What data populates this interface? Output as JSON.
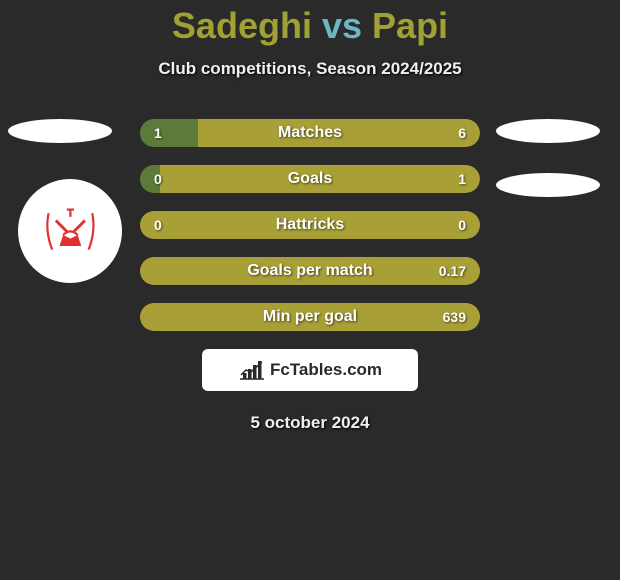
{
  "background_color": "#2a2a2a",
  "title": {
    "player1": "Sadeghi",
    "vs": "vs",
    "player2": "Papi",
    "player1_color": "#a0a034",
    "vs_color": "#6bb8c4",
    "player2_color": "#a0a034",
    "fontsize": 36
  },
  "subtitle": "Club competitions, Season 2024/2025",
  "avatars": {
    "left_club_color": "#e03030",
    "placeholder_bg": "#ffffff"
  },
  "bars": [
    {
      "label": "Matches",
      "left_value": "1",
      "right_value": "6",
      "left_fill_pct": 17,
      "left_color": "#5c7a3a",
      "right_color": "#a8a036"
    },
    {
      "label": "Goals",
      "left_value": "0",
      "right_value": "1",
      "left_fill_pct": 6,
      "left_color": "#5c7a3a",
      "right_color": "#a8a036"
    },
    {
      "label": "Hattricks",
      "left_value": "0",
      "right_value": "0",
      "left_fill_pct": 100,
      "left_color": "#a8a036",
      "right_color": "#a8a036"
    },
    {
      "label": "Goals per match",
      "left_value": "",
      "right_value": "0.17",
      "left_fill_pct": 100,
      "left_color": "#a8a036",
      "right_color": "#a8a036"
    },
    {
      "label": "Min per goal",
      "left_value": "",
      "right_value": "639",
      "left_fill_pct": 100,
      "left_color": "#a8a036",
      "right_color": "#a8a036"
    }
  ],
  "bar_styling": {
    "height": 28,
    "border_radius": 14,
    "gap": 18,
    "text_color": "#ffffff"
  },
  "logo": {
    "text": "FcTables.com",
    "bg": "#ffffff",
    "text_color": "#2a2a2a"
  },
  "date": "5 october 2024"
}
